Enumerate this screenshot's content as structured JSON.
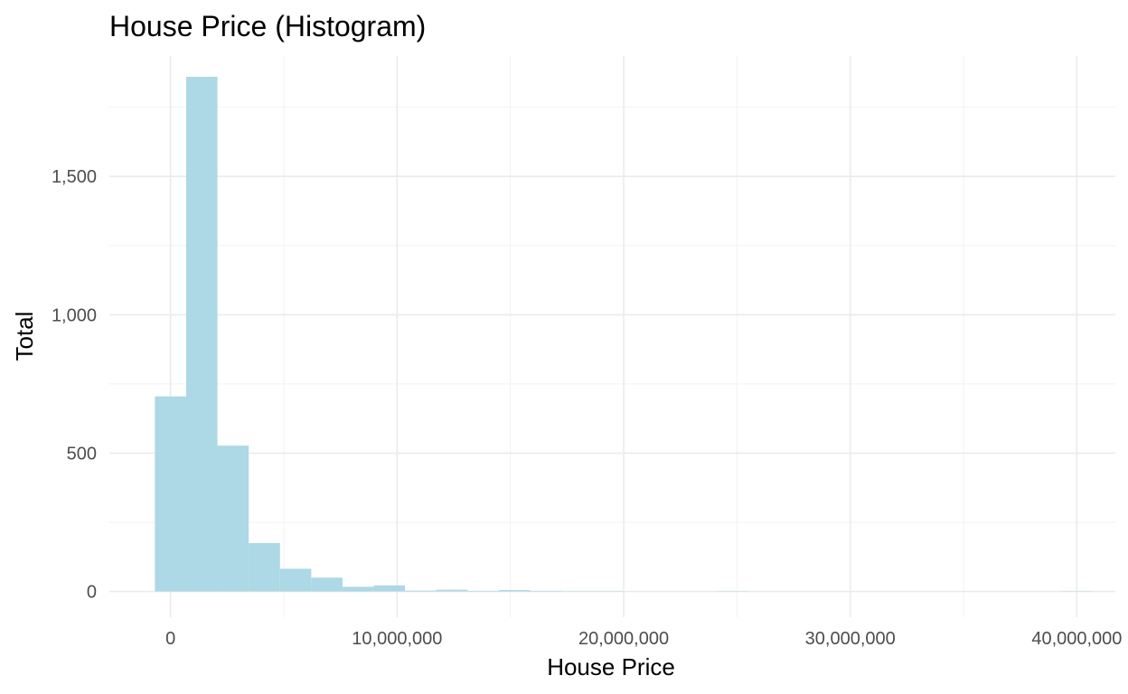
{
  "chart_data": {
    "type": "bar",
    "title": "House Price (Histogram)",
    "xlabel": "House Price",
    "ylabel": "Total",
    "bar_color": "#add8e6",
    "background_color": "#ffffff",
    "grid": true,
    "legend": "none",
    "xlim": [
      -2700000,
      41700000
    ],
    "ylim": [
      -93,
      1935
    ],
    "x_ticks": [
      {
        "value": 0,
        "label": "0"
      },
      {
        "value": 10000000,
        "label": "10,000,000"
      },
      {
        "value": 20000000,
        "label": "20,000,000"
      },
      {
        "value": 30000000,
        "label": "30,000,000"
      },
      {
        "value": 40000000,
        "label": "40,000,000"
      }
    ],
    "y_ticks": [
      {
        "value": 0,
        "label": "0"
      },
      {
        "value": 500,
        "label": "500"
      },
      {
        "value": 1000,
        "label": "1,000"
      },
      {
        "value": 1500,
        "label": "1,500"
      }
    ],
    "x_minor": [
      5000000,
      15000000,
      25000000,
      35000000
    ],
    "y_minor": [
      250,
      750,
      1250,
      1750
    ],
    "bin_width": 1380000,
    "bins": [
      {
        "start": -690000,
        "count": 705
      },
      {
        "start": 690000,
        "count": 1860
      },
      {
        "start": 2070000,
        "count": 527
      },
      {
        "start": 3450000,
        "count": 175
      },
      {
        "start": 4830000,
        "count": 82
      },
      {
        "start": 6210000,
        "count": 50
      },
      {
        "start": 7590000,
        "count": 17
      },
      {
        "start": 8970000,
        "count": 22
      },
      {
        "start": 10350000,
        "count": 3
      },
      {
        "start": 11730000,
        "count": 6
      },
      {
        "start": 13110000,
        "count": 2
      },
      {
        "start": 14490000,
        "count": 5
      },
      {
        "start": 15870000,
        "count": 2
      },
      {
        "start": 17250000,
        "count": 1
      },
      {
        "start": 18630000,
        "count": 1
      },
      {
        "start": 20010000,
        "count": 0
      },
      {
        "start": 21390000,
        "count": 0
      },
      {
        "start": 22770000,
        "count": 0
      },
      {
        "start": 24150000,
        "count": 1
      },
      {
        "start": 25530000,
        "count": 0
      },
      {
        "start": 26910000,
        "count": 0
      },
      {
        "start": 28290000,
        "count": 0
      },
      {
        "start": 29670000,
        "count": 0
      },
      {
        "start": 31050000,
        "count": 0
      },
      {
        "start": 32430000,
        "count": 0
      },
      {
        "start": 33810000,
        "count": 0
      },
      {
        "start": 35190000,
        "count": 0
      },
      {
        "start": 36570000,
        "count": 0
      },
      {
        "start": 37950000,
        "count": 0
      },
      {
        "start": 39330000,
        "count": 1
      }
    ]
  }
}
